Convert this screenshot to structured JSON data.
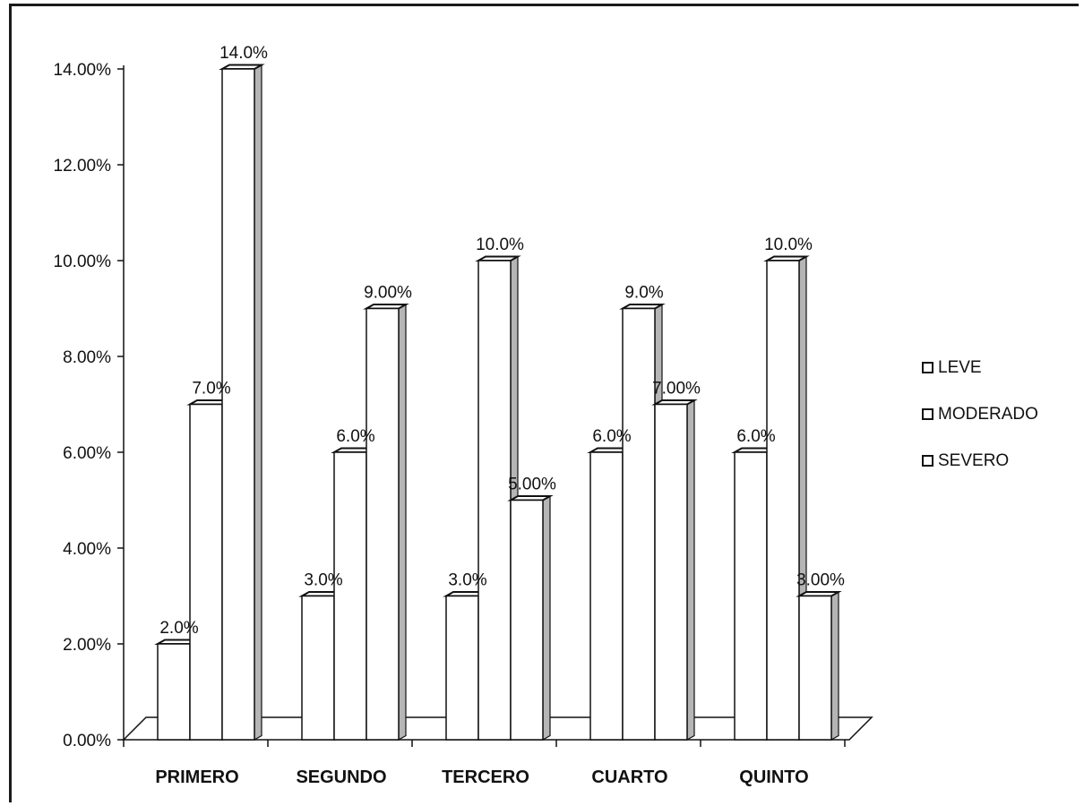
{
  "chart_data": {
    "type": "bar",
    "style": "3d-clustered-columns",
    "categories": [
      "PRIMERO",
      "SEGUNDO",
      "TERCERO",
      "CUARTO",
      "QUINTO"
    ],
    "series": [
      {
        "name": "LEVE",
        "values": [
          2.0,
          3.0,
          3.0,
          6.0,
          6.0
        ],
        "labels": [
          "2.0%",
          "3.0%",
          "3.0%",
          "6.0%",
          "6.0%"
        ]
      },
      {
        "name": "MODERADO",
        "values": [
          7.0,
          6.0,
          10.0,
          9.0,
          10.0
        ],
        "labels": [
          "7.0%",
          "6.0%",
          "10.0%",
          "9.0%",
          "10.0%"
        ]
      },
      {
        "name": "SEVERO",
        "values": [
          14.0,
          9.0,
          5.0,
          7.0,
          3.0
        ],
        "labels": [
          "14.0%",
          "9.00%",
          "5.00%",
          "7.00%",
          "3.00%"
        ]
      }
    ],
    "yticks": [
      "0.00%",
      "2.00%",
      "4.00%",
      "6.00%",
      "8.00%",
      "10.00%",
      "12.00%",
      "14.00%"
    ],
    "ylim": [
      0,
      14
    ],
    "grid": false,
    "legend_position": "right",
    "colors": {
      "front": "#ffffff",
      "side": "#b5b5b5",
      "top": "#ffffff",
      "stroke": "#111111"
    }
  }
}
